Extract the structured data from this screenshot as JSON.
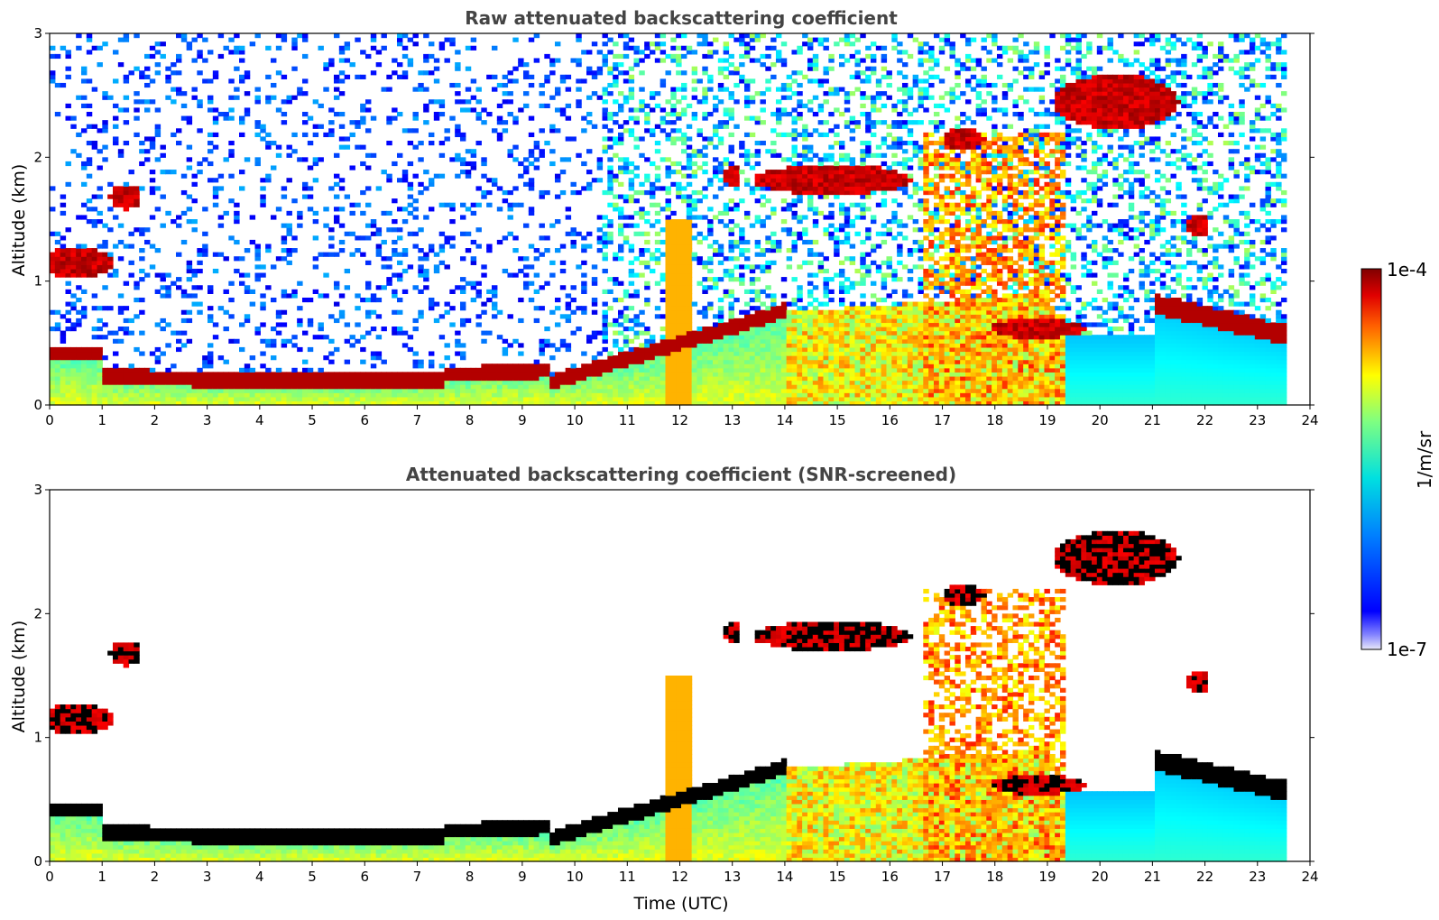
{
  "chart_data": [
    {
      "type": "heatmap",
      "title": "Raw attenuated backscattering coefficient",
      "xlabel": "",
      "ylabel": "Altitude (km)",
      "xlim": [
        0,
        24
      ],
      "ylim": [
        0,
        3
      ],
      "x_ticks": [
        "0",
        "1",
        "2",
        "3",
        "4",
        "5",
        "6",
        "7",
        "8",
        "9",
        "10",
        "11",
        "12",
        "13",
        "14",
        "15",
        "16",
        "17",
        "18",
        "19",
        "20",
        "21",
        "22",
        "23",
        "24"
      ],
      "y_ticks": [
        "0",
        "1",
        "2",
        "3"
      ],
      "screened": false
    },
    {
      "type": "heatmap",
      "title": "Attenuated backscattering coefficient (SNR-screened)",
      "xlabel": "Time (UTC)",
      "ylabel": "Altitude (km)",
      "xlim": [
        0,
        24
      ],
      "ylim": [
        0,
        3
      ],
      "x_ticks": [
        "0",
        "1",
        "2",
        "3",
        "4",
        "5",
        "6",
        "7",
        "8",
        "9",
        "10",
        "11",
        "12",
        "13",
        "14",
        "15",
        "16",
        "17",
        "18",
        "19",
        "20",
        "21",
        "22",
        "23",
        "24"
      ],
      "y_ticks": [
        "0",
        "1",
        "2",
        "3"
      ],
      "screened": true
    }
  ],
  "colorbar": {
    "label": "1/m/sr",
    "max_label": "1e-4",
    "min_label": "1e-7",
    "colormap": "jet"
  },
  "data_end_time": 23.55
}
